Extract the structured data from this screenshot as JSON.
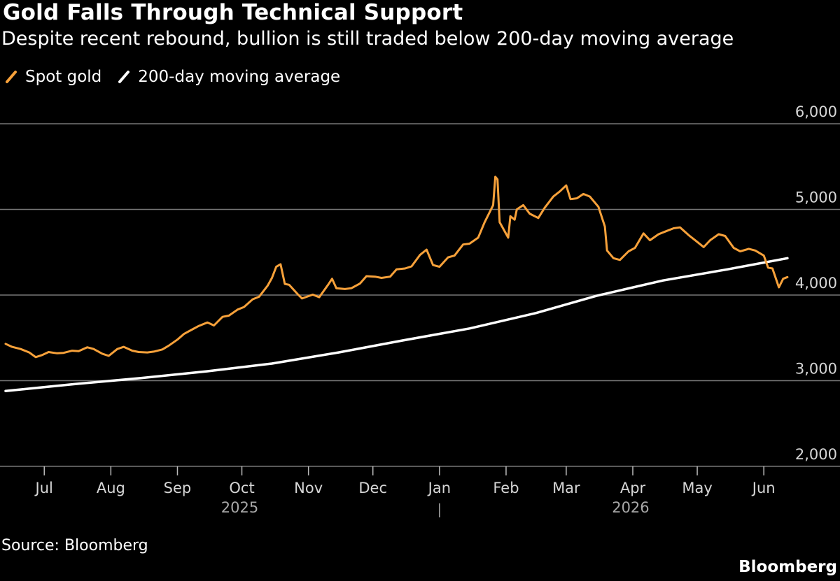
{
  "header": {
    "title": "Gold Falls Through Technical Support",
    "subtitle": "Despite recent rebound, bullion is still traded below 200-day moving average"
  },
  "footer": {
    "source": "Source: Bloomberg",
    "brand": "Bloomberg"
  },
  "colors": {
    "background": "#000000",
    "spot_gold": "#f7a13a",
    "moving_average": "#ffffff",
    "grid": "#777777"
  },
  "chart_data": {
    "type": "line",
    "grid": true,
    "legend_position": "top-left",
    "ylim": [
      2000,
      6000
    ],
    "y_ticks": [
      {
        "value": 6000,
        "label": "6,000"
      },
      {
        "value": 5000,
        "label": "5,000"
      },
      {
        "value": 4000,
        "label": "4,000"
      },
      {
        "value": 3000,
        "label": "3,000"
      },
      {
        "value": 2000,
        "label": "2,000"
      }
    ],
    "x_range": [
      "2025-06-13",
      "2026-06-13"
    ],
    "x_ticks": [
      {
        "date": "2025-07-01",
        "label": "Jul"
      },
      {
        "date": "2025-08-01",
        "label": "Aug"
      },
      {
        "date": "2025-09-01",
        "label": "Sep"
      },
      {
        "date": "2025-10-01",
        "label": "Oct"
      },
      {
        "date": "2025-11-01",
        "label": "Nov"
      },
      {
        "date": "2025-12-01",
        "label": "Dec"
      },
      {
        "date": "2026-01-01",
        "label": "Jan"
      },
      {
        "date": "2026-02-01",
        "label": "Feb"
      },
      {
        "date": "2026-03-01",
        "label": "Mar"
      },
      {
        "date": "2026-04-01",
        "label": "Apr"
      },
      {
        "date": "2026-05-01",
        "label": "May"
      },
      {
        "date": "2026-06-01",
        "label": "Jun"
      }
    ],
    "year_labels": [
      {
        "date": "2025-09-30",
        "label": "2025"
      },
      {
        "date": "2026-03-31",
        "label": "2026"
      }
    ],
    "year_divider": "2026-01-01",
    "series": [
      {
        "name": "Spot gold",
        "color": "#f7a13a",
        "points": [
          [
            "2025-06-13",
            3430
          ],
          [
            "2025-06-16",
            3395
          ],
          [
            "2025-06-20",
            3370
          ],
          [
            "2025-06-24",
            3330
          ],
          [
            "2025-06-27",
            3275
          ],
          [
            "2025-06-30",
            3300
          ],
          [
            "2025-07-03",
            3335
          ],
          [
            "2025-07-07",
            3320
          ],
          [
            "2025-07-10",
            3325
          ],
          [
            "2025-07-14",
            3350
          ],
          [
            "2025-07-17",
            3345
          ],
          [
            "2025-07-21",
            3390
          ],
          [
            "2025-07-24",
            3370
          ],
          [
            "2025-07-28",
            3315
          ],
          [
            "2025-07-31",
            3290
          ],
          [
            "2025-08-04",
            3370
          ],
          [
            "2025-08-07",
            3395
          ],
          [
            "2025-08-11",
            3350
          ],
          [
            "2025-08-14",
            3335
          ],
          [
            "2025-08-18",
            3330
          ],
          [
            "2025-08-21",
            3340
          ],
          [
            "2025-08-25",
            3365
          ],
          [
            "2025-08-28",
            3410
          ],
          [
            "2025-09-01",
            3480
          ],
          [
            "2025-09-04",
            3545
          ],
          [
            "2025-09-08",
            3600
          ],
          [
            "2025-09-11",
            3640
          ],
          [
            "2025-09-15",
            3680
          ],
          [
            "2025-09-18",
            3645
          ],
          [
            "2025-09-22",
            3745
          ],
          [
            "2025-09-25",
            3760
          ],
          [
            "2025-09-29",
            3830
          ],
          [
            "2025-10-02",
            3860
          ],
          [
            "2025-10-06",
            3950
          ],
          [
            "2025-10-09",
            3980
          ],
          [
            "2025-10-13",
            4110
          ],
          [
            "2025-10-15",
            4200
          ],
          [
            "2025-10-17",
            4330
          ],
          [
            "2025-10-19",
            4360
          ],
          [
            "2025-10-21",
            4130
          ],
          [
            "2025-10-23",
            4120
          ],
          [
            "2025-10-27",
            4010
          ],
          [
            "2025-10-29",
            3960
          ],
          [
            "2025-11-03",
            4005
          ],
          [
            "2025-11-06",
            3975
          ],
          [
            "2025-11-10",
            4115
          ],
          [
            "2025-11-12",
            4190
          ],
          [
            "2025-11-14",
            4080
          ],
          [
            "2025-11-18",
            4070
          ],
          [
            "2025-11-21",
            4080
          ],
          [
            "2025-11-25",
            4135
          ],
          [
            "2025-11-28",
            4220
          ],
          [
            "2025-12-02",
            4215
          ],
          [
            "2025-12-05",
            4200
          ],
          [
            "2025-12-09",
            4215
          ],
          [
            "2025-12-12",
            4300
          ],
          [
            "2025-12-16",
            4310
          ],
          [
            "2025-12-19",
            4335
          ],
          [
            "2025-12-23",
            4470
          ],
          [
            "2025-12-26",
            4530
          ],
          [
            "2025-12-29",
            4350
          ],
          [
            "2026-01-01",
            4330
          ],
          [
            "2026-01-05",
            4440
          ],
          [
            "2026-01-08",
            4460
          ],
          [
            "2026-01-12",
            4590
          ],
          [
            "2026-01-15",
            4600
          ],
          [
            "2026-01-19",
            4670
          ],
          [
            "2026-01-22",
            4850
          ],
          [
            "2026-01-26",
            5050
          ],
          [
            "2026-01-27",
            5380
          ],
          [
            "2026-01-28",
            5350
          ],
          [
            "2026-01-29",
            4850
          ],
          [
            "2026-02-02",
            4670
          ],
          [
            "2026-02-03",
            4920
          ],
          [
            "2026-02-05",
            4880
          ],
          [
            "2026-02-06",
            5000
          ],
          [
            "2026-02-09",
            5050
          ],
          [
            "2026-02-12",
            4950
          ],
          [
            "2026-02-16",
            4900
          ],
          [
            "2026-02-19",
            5020
          ],
          [
            "2026-02-23",
            5150
          ],
          [
            "2026-02-26",
            5210
          ],
          [
            "2026-03-01",
            5280
          ],
          [
            "2026-03-03",
            5120
          ],
          [
            "2026-03-06",
            5130
          ],
          [
            "2026-03-09",
            5180
          ],
          [
            "2026-03-12",
            5150
          ],
          [
            "2026-03-16",
            5030
          ],
          [
            "2026-03-19",
            4800
          ],
          [
            "2026-03-20",
            4520
          ],
          [
            "2026-03-23",
            4430
          ],
          [
            "2026-03-26",
            4410
          ],
          [
            "2026-03-30",
            4510
          ],
          [
            "2026-04-02",
            4550
          ],
          [
            "2026-04-06",
            4720
          ],
          [
            "2026-04-09",
            4640
          ],
          [
            "2026-04-13",
            4710
          ],
          [
            "2026-04-16",
            4740
          ],
          [
            "2026-04-20",
            4780
          ],
          [
            "2026-04-23",
            4790
          ],
          [
            "2026-04-27",
            4700
          ],
          [
            "2026-04-30",
            4640
          ],
          [
            "2026-05-04",
            4560
          ],
          [
            "2026-05-07",
            4640
          ],
          [
            "2026-05-11",
            4710
          ],
          [
            "2026-05-14",
            4690
          ],
          [
            "2026-05-18",
            4550
          ],
          [
            "2026-05-21",
            4510
          ],
          [
            "2026-05-25",
            4540
          ],
          [
            "2026-05-28",
            4520
          ],
          [
            "2026-06-01",
            4460
          ],
          [
            "2026-06-03",
            4320
          ],
          [
            "2026-06-05",
            4310
          ],
          [
            "2026-06-08",
            4090
          ],
          [
            "2026-06-10",
            4190
          ],
          [
            "2026-06-12",
            4210
          ]
        ]
      },
      {
        "name": "200-day moving average",
        "color": "#ffffff",
        "points": [
          [
            "2025-06-13",
            2880
          ],
          [
            "2025-07-15",
            2960
          ],
          [
            "2025-08-15",
            3030
          ],
          [
            "2025-09-15",
            3110
          ],
          [
            "2025-10-15",
            3200
          ],
          [
            "2025-11-15",
            3330
          ],
          [
            "2025-12-15",
            3470
          ],
          [
            "2026-01-15",
            3610
          ],
          [
            "2026-02-15",
            3790
          ],
          [
            "2026-03-15",
            3990
          ],
          [
            "2026-04-15",
            4170
          ],
          [
            "2026-05-15",
            4300
          ],
          [
            "2026-06-12",
            4430
          ]
        ]
      }
    ]
  }
}
